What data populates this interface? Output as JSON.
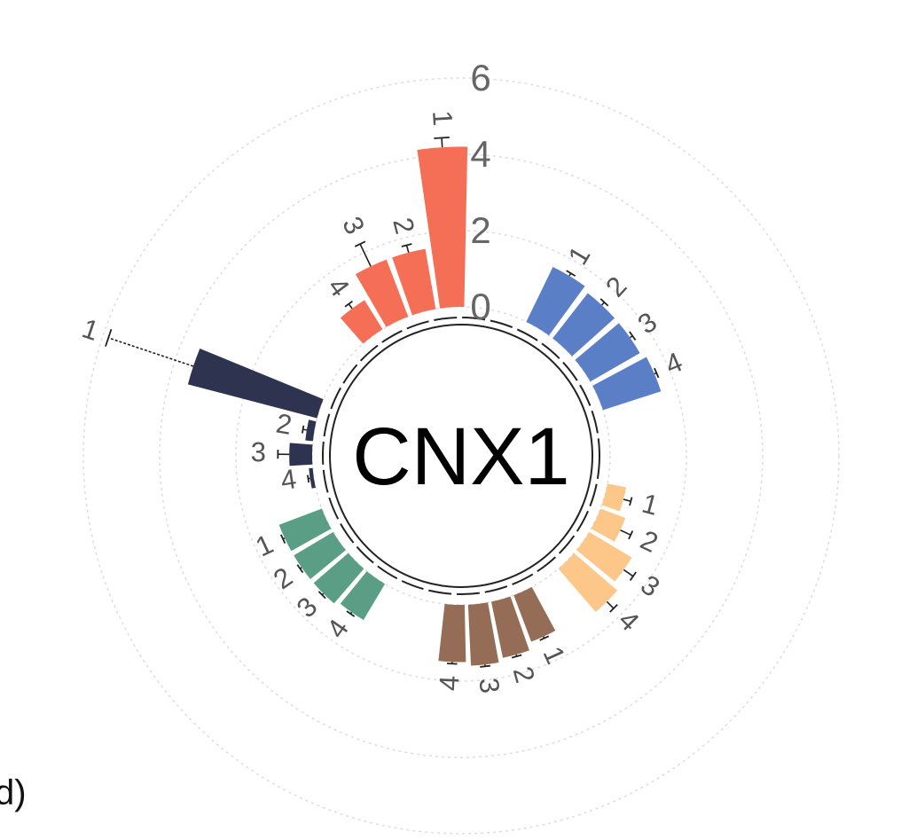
{
  "panel_label": "d)",
  "chart_data": {
    "type": "bar",
    "layout": "circular",
    "center_label": "CNX1",
    "radial_axis": {
      "ticks": [
        0,
        2,
        4,
        6
      ],
      "range": [
        0,
        6
      ]
    },
    "grid": true,
    "groups": [
      {
        "color": "#5b7fc7",
        "bars": [
          {
            "label": "1",
            "value": 1.6,
            "error": 0.08
          },
          {
            "label": "2",
            "value": 1.5,
            "error": 0.1
          },
          {
            "label": "3",
            "value": 1.5,
            "error": 0.08
          },
          {
            "label": "4",
            "value": 1.6,
            "error": 0.06
          }
        ]
      },
      {
        "color": "#fdc78a",
        "bars": [
          {
            "label": "1",
            "value": 0.5,
            "error": 0.2
          },
          {
            "label": "2",
            "value": 0.7,
            "error": 0.3
          },
          {
            "label": "3",
            "value": 1.3,
            "error": 0.3
          },
          {
            "label": "4",
            "value": 1.5,
            "error": 0.25
          }
        ]
      },
      {
        "color": "#956d56",
        "bars": [
          {
            "label": "1",
            "value": 1.3,
            "error": 0.05
          },
          {
            "label": "2",
            "value": 1.5,
            "error": 0.05
          },
          {
            "label": "3",
            "value": 1.6,
            "error": 0.05
          },
          {
            "label": "4",
            "value": 1.5,
            "error": 0.05
          }
        ]
      },
      {
        "color": "#5a9e86",
        "bars": [
          {
            "label": "4",
            "value": 1.1,
            "error": 0.05
          },
          {
            "label": "3",
            "value": 1.2,
            "error": 0.05
          },
          {
            "label": "2",
            "value": 1.2,
            "error": 0.05
          },
          {
            "label": "1",
            "value": 1.2,
            "error": 0.05
          }
        ]
      },
      {
        "color": "#2e3350",
        "bars": [
          {
            "label": "4",
            "value": 0.1,
            "error": 0.05
          },
          {
            "label": "3",
            "value": 0.6,
            "error": 0.3
          },
          {
            "label": "2",
            "value": 0.2,
            "error": 0.1
          },
          {
            "label": "1",
            "value": 3.5,
            "error": 2.35
          }
        ]
      },
      {
        "color": "#f46f55",
        "bars": [
          {
            "label": "4",
            "value": 0.9,
            "error": 0.15
          },
          {
            "label": "3",
            "value": 1.6,
            "error": 0.65
          },
          {
            "label": "2",
            "value": 1.6,
            "error": 0.2
          },
          {
            "label": "1",
            "value": 4.2,
            "error": 0.25
          }
        ]
      }
    ]
  }
}
